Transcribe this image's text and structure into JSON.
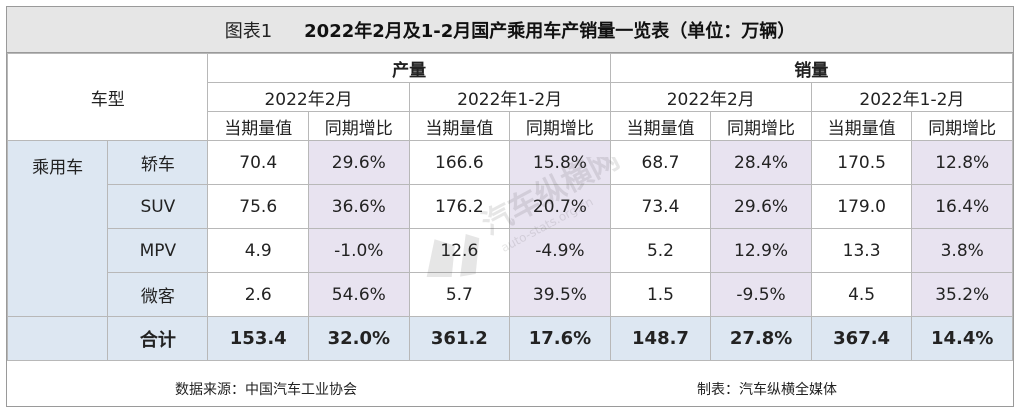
{
  "title": {
    "figure": "图表1",
    "text": "2022年2月及1-2月国产乘用车产销量一览表（单位：万辆）"
  },
  "header": {
    "vehicle_type": "车型",
    "production": "产量",
    "sales": "销量",
    "period_month": "2022年2月",
    "period_ytd": "2022年1-2月",
    "current": "当期量值",
    "yoy": "同期增比"
  },
  "category": "乘用车",
  "rows": [
    {
      "type": "轿车",
      "v": [
        "70.4",
        "29.6%",
        "166.6",
        "15.8%",
        "68.7",
        "28.4%",
        "170.5",
        "12.8%"
      ]
    },
    {
      "type": "SUV",
      "v": [
        "75.6",
        "36.6%",
        "176.2",
        "20.7%",
        "73.4",
        "29.6%",
        "179.0",
        "16.4%"
      ]
    },
    {
      "type": "MPV",
      "v": [
        "4.9",
        "-1.0%",
        "12.6",
        "-4.9%",
        "5.2",
        "12.9%",
        "13.3",
        "3.8%"
      ]
    },
    {
      "type": "微客",
      "v": [
        "2.6",
        "54.6%",
        "5.7",
        "39.5%",
        "1.5",
        "-9.5%",
        "4.5",
        "35.2%"
      ]
    }
  ],
  "total": {
    "label": "合计",
    "v": [
      "153.4",
      "32.0%",
      "361.2",
      "17.6%",
      "148.7",
      "27.8%",
      "367.4",
      "14.4%"
    ]
  },
  "footer": {
    "source": "数据来源：中国汽车工业协会",
    "made_by": "制表：汽车纵横全媒体"
  },
  "watermark": {
    "text": "汽车纵横网",
    "url": "auto-stats.org.cn"
  }
}
